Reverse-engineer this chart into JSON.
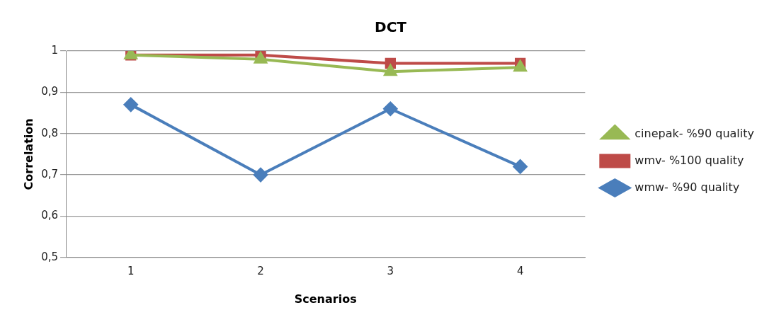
{
  "chart_data": {
    "type": "line",
    "title": "DCT",
    "xlabel": "Scenarios",
    "ylabel": "Correlation",
    "categories": [
      "1",
      "2",
      "3",
      "4"
    ],
    "series": [
      {
        "name": "wmw- %90 quality",
        "color": "#4a7ebb",
        "marker": "diamond",
        "values": [
          0.87,
          0.7,
          0.86,
          0.72
        ]
      },
      {
        "name": "wmv- %100 quality",
        "color": "#be4b48",
        "marker": "square",
        "values": [
          0.99,
          0.99,
          0.97,
          0.97
        ]
      },
      {
        "name": "cinepak- %90 quality",
        "color": "#98b954",
        "marker": "triangle",
        "values": [
          0.99,
          0.98,
          0.95,
          0.96
        ]
      }
    ],
    "ylim": [
      0.5,
      1
    ],
    "yticks": [
      {
        "value": 0.5,
        "label": "0,5"
      },
      {
        "value": 0.6,
        "label": "0,6"
      },
      {
        "value": 0.7,
        "label": "0,7"
      },
      {
        "value": 0.8,
        "label": "0,8"
      },
      {
        "value": 0.9,
        "label": "0,9"
      },
      1
    ],
    "grid": "y",
    "legend": "right",
    "line_style": "solid"
  }
}
